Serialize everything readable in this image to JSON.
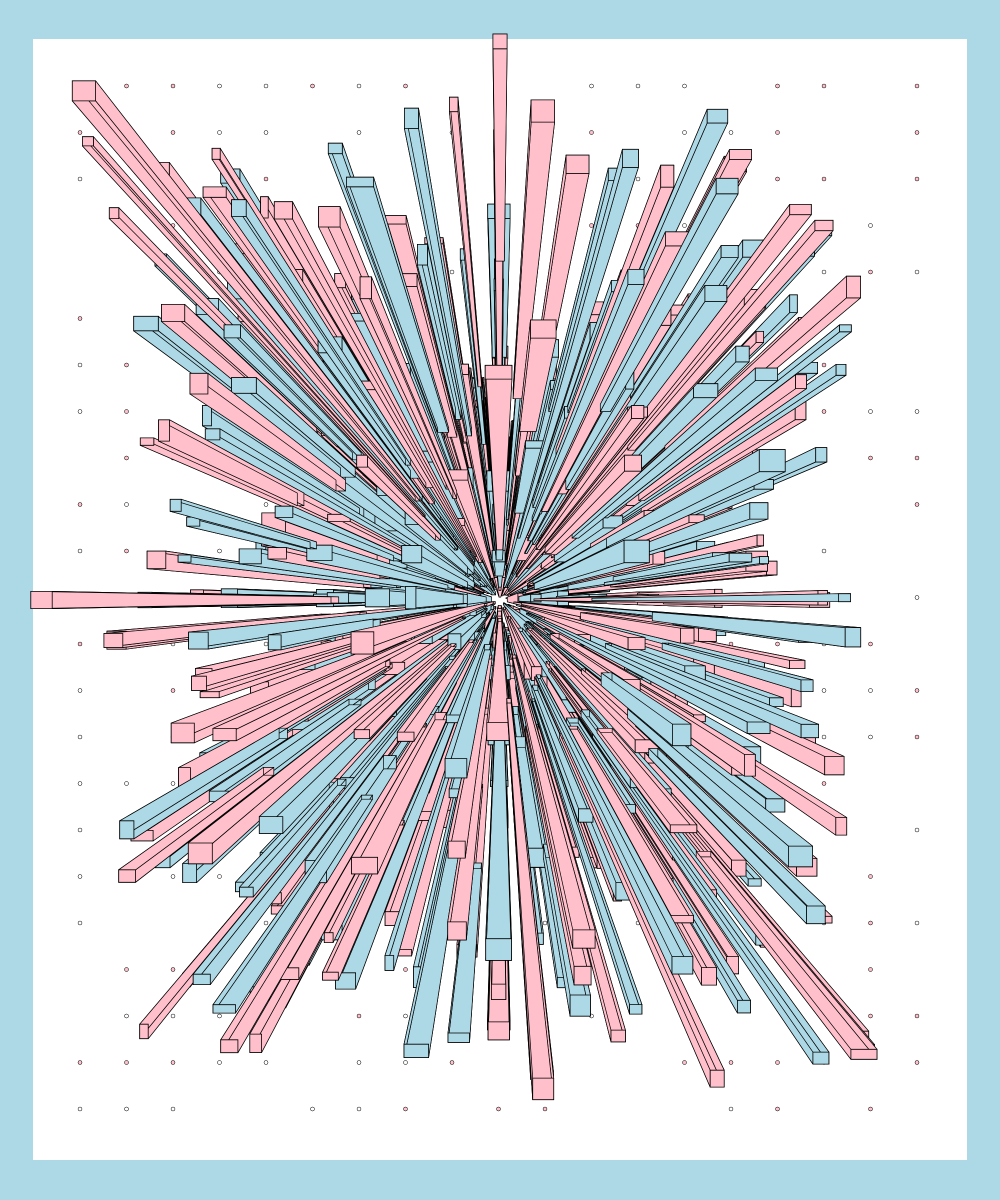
{
  "artwork": {
    "kind": "generative perspective box field",
    "colors": {
      "frame": "#add8e6",
      "paper": "#ffffff",
      "box_pink": "#ffc0cb",
      "box_blue": "#add8e6",
      "outline": "#000000"
    }
  }
}
